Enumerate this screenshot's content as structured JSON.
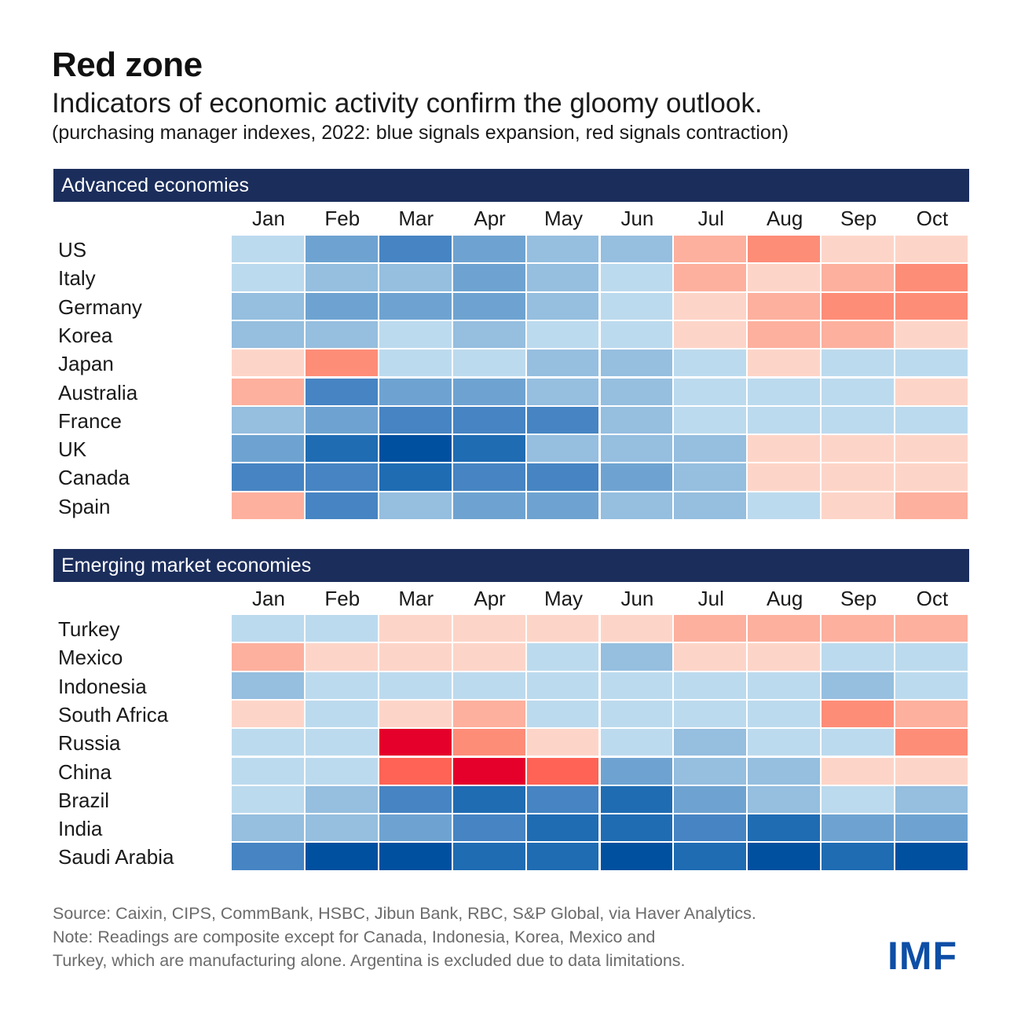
{
  "header": {
    "title": "Red zone",
    "subtitle": "Indicators of economic activity confirm the gloomy outlook.",
    "description": "(purchasing manager indexes, 2022: blue signals expansion, red signals contraction)"
  },
  "colors": {
    "header_bg": "#1b2d5b",
    "scale": {
      "-3": "#e4002b",
      "-2.5": "#fe6355",
      "-2": "#fe8d78",
      "-1": "#fdb09e",
      "0": "#fdd5c8",
      "1": "#bcdaee",
      "2": "#95bedf",
      "3": "#6ea3d1",
      "4": "#4684c3",
      "5": "#1f6cb3",
      "6": "#0050a0"
    }
  },
  "chart_data": [
    {
      "type": "heatmap",
      "title": "Advanced economies",
      "x": [
        "Jan",
        "Feb",
        "Mar",
        "Apr",
        "May",
        "Jun",
        "Jul",
        "Aug",
        "Sep",
        "Oct"
      ],
      "rows": [
        "US",
        "Italy",
        "Germany",
        "Korea",
        "Japan",
        "Australia",
        "France",
        "UK",
        "Canada",
        "Spain"
      ],
      "values": [
        [
          1,
          3,
          4,
          3,
          2,
          2,
          -1,
          -2,
          0,
          0
        ],
        [
          1,
          2,
          2,
          3,
          2,
          1,
          -1,
          0,
          -1,
          -2
        ],
        [
          2,
          3,
          3,
          3,
          2,
          1,
          0,
          -1,
          -2,
          -2
        ],
        [
          2,
          2,
          1,
          2,
          1,
          1,
          0,
          -1,
          -1,
          0
        ],
        [
          0,
          -2,
          1,
          1,
          2,
          2,
          1,
          0,
          1,
          1
        ],
        [
          -1,
          4,
          3,
          3,
          2,
          2,
          1,
          1,
          1,
          0
        ],
        [
          2,
          3,
          4,
          4,
          4,
          2,
          1,
          1,
          1,
          1
        ],
        [
          3,
          5,
          6,
          5,
          2,
          2,
          2,
          0,
          0,
          0
        ],
        [
          4,
          4,
          5,
          4,
          4,
          3,
          2,
          0,
          0,
          0
        ],
        [
          -1,
          4,
          2,
          3,
          3,
          2,
          2,
          1,
          0,
          -1
        ]
      ]
    },
    {
      "type": "heatmap",
      "title": "Emerging market economies",
      "x": [
        "Jan",
        "Feb",
        "Mar",
        "Apr",
        "May",
        "Jun",
        "Jul",
        "Aug",
        "Sep",
        "Oct"
      ],
      "rows": [
        "Turkey",
        "Mexico",
        "Indonesia",
        "South Africa",
        "Russia",
        "China",
        "Brazil",
        "India",
        "Saudi Arabia"
      ],
      "values": [
        [
          1,
          1,
          0,
          0,
          0,
          0,
          -1,
          -1,
          -1,
          -1
        ],
        [
          -1,
          0,
          0,
          0,
          1,
          2,
          0,
          0,
          1,
          1
        ],
        [
          2,
          1,
          1,
          1,
          1,
          1,
          1,
          1,
          2,
          1
        ],
        [
          0,
          1,
          0,
          -1,
          1,
          1,
          1,
          1,
          -2,
          -1
        ],
        [
          1,
          1,
          -3,
          -2,
          0,
          1,
          2,
          1,
          1,
          -2
        ],
        [
          1,
          1,
          -2.5,
          -3,
          -2.5,
          3,
          2,
          2,
          0,
          0
        ],
        [
          1,
          2,
          4,
          5,
          4,
          5,
          3,
          2,
          1,
          2
        ],
        [
          2,
          2,
          3,
          4,
          5,
          5,
          4,
          5,
          3,
          3
        ],
        [
          4,
          6,
          6,
          5,
          5,
          6,
          5,
          6,
          5,
          6
        ]
      ]
    }
  ],
  "footer": {
    "source": "Source: Caixin, CIPS, CommBank, HSBC, Jibun Bank, RBC, S&P Global, via Haver Analytics.",
    "note_line1": "Note: Readings are composite except for Canada, Indonesia, Korea, Mexico and",
    "note_line2": "Turkey, which are manufacturing alone. Argentina is excluded due to data limitations."
  },
  "logo": {
    "text": "IMF"
  }
}
